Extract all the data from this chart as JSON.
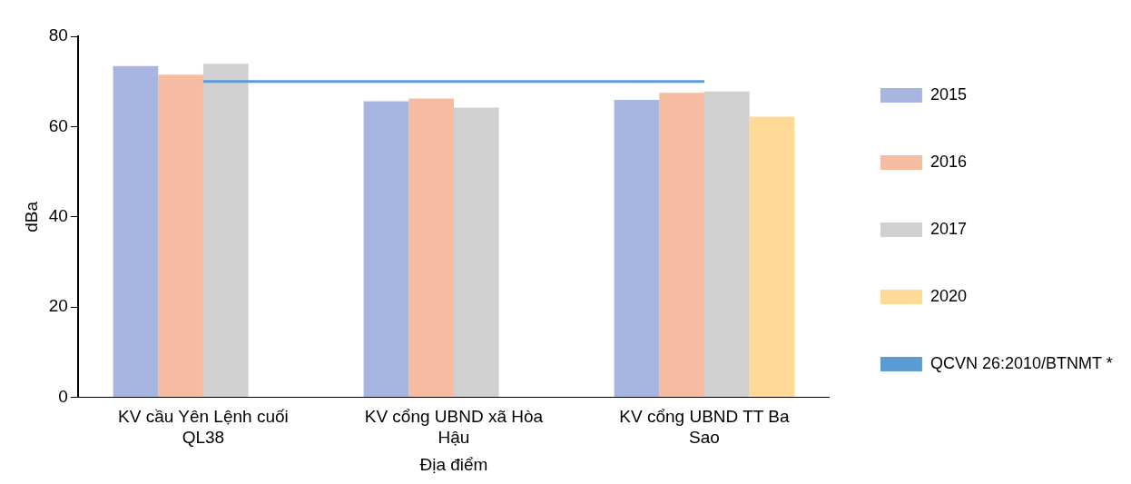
{
  "chart_data": {
    "type": "bar",
    "xlabel": "Địa điểm",
    "ylabel": "dBa",
    "categories": [
      "KV cầu Yên Lệnh cuối QL38",
      "KV cổng UBND xã Hòa Hậu",
      "KV cổng UBND TT Ba Sao"
    ],
    "series": [
      {
        "name": "2015",
        "color": "#a7b6e0",
        "values": [
          73.4,
          65.6,
          65.9
        ]
      },
      {
        "name": "2016",
        "color": "#f6bca1",
        "values": [
          71.5,
          66.2,
          67.5
        ]
      },
      {
        "name": "2017",
        "color": "#d0d0d0",
        "values": [
          73.9,
          64.2,
          67.8
        ]
      },
      {
        "name": "2020",
        "color": "#ffd996",
        "values": [
          null,
          null,
          62.2
        ]
      },
      {
        "name": "QCVN 26:2010/BTNMT *",
        "type": "line",
        "color": "#5b9bd5",
        "values": [
          70,
          70,
          70
        ]
      }
    ],
    "ylim": [
      0,
      80
    ],
    "yticks": [
      0,
      20,
      40,
      60,
      80
    ],
    "grid": false,
    "legend": "right",
    "marker": "none"
  }
}
